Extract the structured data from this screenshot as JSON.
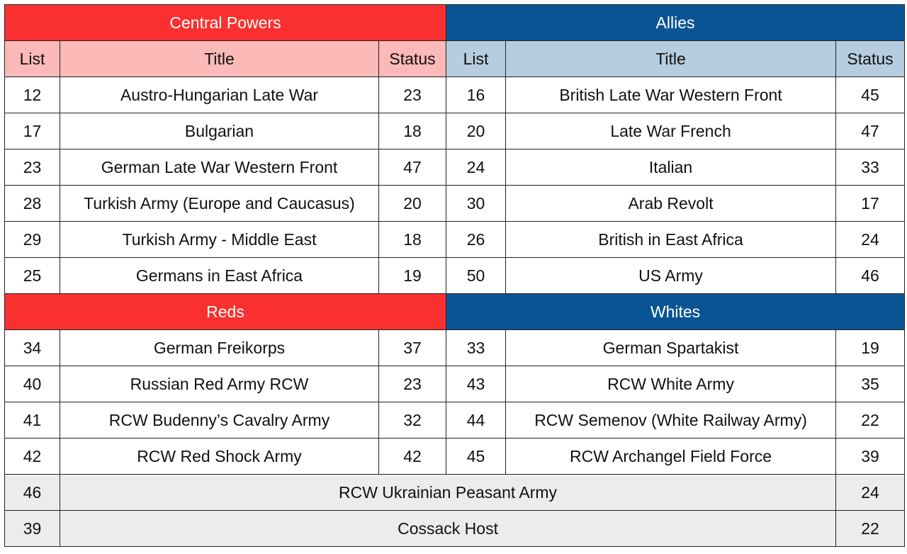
{
  "colors": {
    "central_powers_header": "#fa3030",
    "central_powers_subheader": "#fbb9b7",
    "allies_header": "#0b5493",
    "allies_subheader": "#b6cde0",
    "neutral_row": "#ececec"
  },
  "columns": {
    "list": "List",
    "title": "Title",
    "status": "Status"
  },
  "section1": {
    "left_group": "Central Powers",
    "right_group": "Allies",
    "rows": [
      {
        "l_list": "12",
        "l_title": "Austro-Hungarian Late War",
        "l_status": "23",
        "r_list": "16",
        "r_title": "British Late War Western Front",
        "r_status": "45"
      },
      {
        "l_list": "17",
        "l_title": "Bulgarian",
        "l_status": "18",
        "r_list": "20",
        "r_title": "Late War French",
        "r_status": "47"
      },
      {
        "l_list": "23",
        "l_title": "German Late War Western Front",
        "l_status": "47",
        "r_list": "24",
        "r_title": "Italian",
        "r_status": "33"
      },
      {
        "l_list": "28",
        "l_title": "Turkish Army (Europe and Caucasus)",
        "l_status": "20",
        "r_list": "30",
        "r_title": "Arab Revolt",
        "r_status": "17"
      },
      {
        "l_list": "29",
        "l_title": "Turkish Army - Middle East",
        "l_status": "18",
        "r_list": "26",
        "r_title": "British in East Africa",
        "r_status": "24"
      },
      {
        "l_list": "25",
        "l_title": "Germans in East Africa",
        "l_status": "19",
        "r_list": "50",
        "r_title": "US Army",
        "r_status": "46"
      }
    ]
  },
  "section2": {
    "left_group": "Reds",
    "right_group": "Whites",
    "rows": [
      {
        "l_list": "34",
        "l_title": "German Freikorps",
        "l_status": "37",
        "r_list": "33",
        "r_title": "German Spartakist",
        "r_status": "19"
      },
      {
        "l_list": "40",
        "l_title": "Russian Red Army RCW",
        "l_status": "23",
        "r_list": "43",
        "r_title": "RCW White Army",
        "r_status": "35"
      },
      {
        "l_list": "41",
        "l_title": "RCW Budenny’s Cavalry Army",
        "l_status": "32",
        "r_list": "44",
        "r_title": "RCW Semenov (White Railway Army)",
        "r_status": "22"
      },
      {
        "l_list": "42",
        "l_title": "RCW Red Shock Army",
        "l_status": "42",
        "r_list": "45",
        "r_title": "RCW Archangel Field Force",
        "r_status": "39"
      }
    ],
    "neutral_rows": [
      {
        "list": "46",
        "title": "RCW Ukrainian Peasant Army",
        "status": "24"
      },
      {
        "list": "39",
        "title": "Cossack Host",
        "status": "22"
      }
    ]
  }
}
